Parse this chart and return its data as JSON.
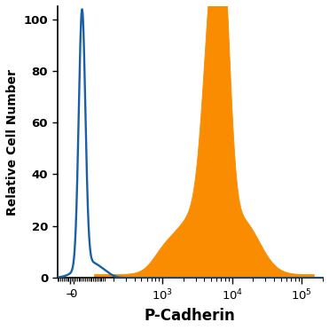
{
  "xlabel": "P-Cadherin",
  "ylabel": "Relative Cell Number",
  "ylim": [
    0,
    105
  ],
  "yticks": [
    0,
    20,
    40,
    60,
    80,
    100
  ],
  "blue_color": "#1a5fa8",
  "orange_color": "#f98c00",
  "background_color": "#ffffff",
  "xlabel_fontsize": 12,
  "ylabel_fontsize": 10,
  "tick_fontsize": 9.5,
  "linthresh": 150,
  "linscale": 0.4
}
